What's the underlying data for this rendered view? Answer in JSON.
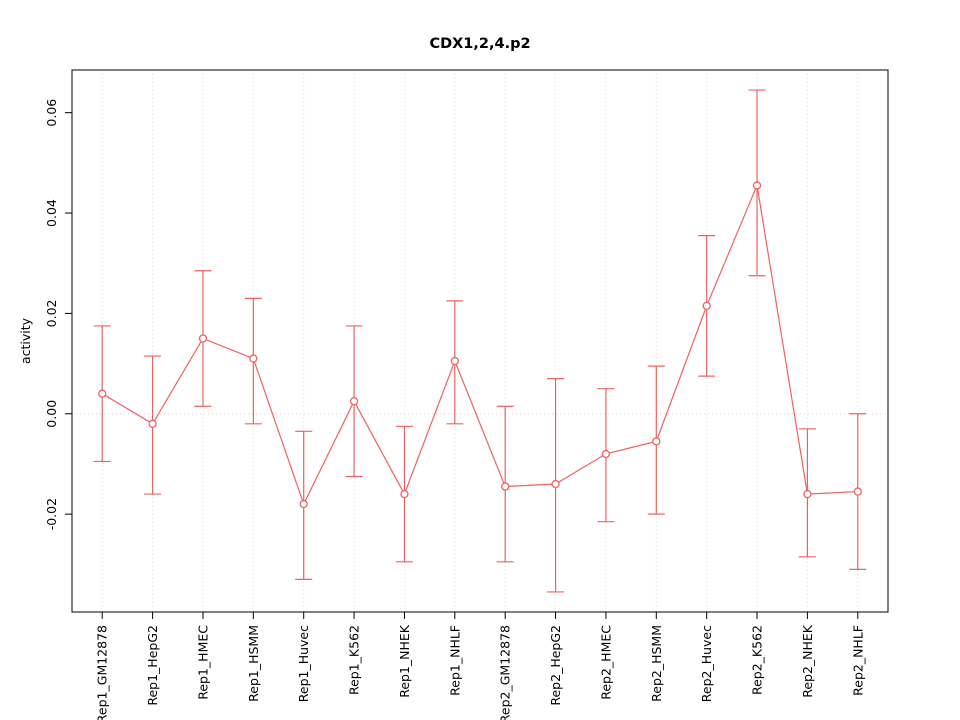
{
  "page": {
    "title": "CDX1,2,4.p2"
  },
  "chart_data": {
    "type": "line",
    "title": "CDX1,2,4.p2",
    "xlabel": "",
    "ylabel": "activity",
    "categories": [
      "Rep1_GM12878",
      "Rep1_HepG2",
      "Rep1_HMEC",
      "Rep1_HSMM",
      "Rep1_Huvec",
      "Rep1_K562",
      "Rep1_NHEK",
      "Rep1_NHLF",
      "Rep2_GM12878",
      "Rep2_HepG2",
      "Rep2_HMEC",
      "Rep2_HSMM",
      "Rep2_Huvec",
      "Rep2_K562",
      "Rep2_NHEK",
      "Rep2_NHLF"
    ],
    "series": [
      {
        "name": "activity",
        "marker": "open-circle",
        "values": [
          0.004,
          -0.002,
          0.015,
          0.011,
          -0.018,
          0.0025,
          -0.016,
          0.0105,
          -0.0145,
          -0.014,
          -0.008,
          -0.0055,
          0.0215,
          0.0455,
          -0.016,
          -0.0155
        ],
        "upper": [
          0.0175,
          0.0115,
          0.0285,
          0.023,
          -0.0035,
          0.0175,
          -0.0025,
          0.0225,
          0.0015,
          0.007,
          0.005,
          0.0095,
          0.0355,
          0.0645,
          -0.003,
          0.0
        ],
        "lower": [
          -0.0095,
          -0.016,
          0.0015,
          -0.002,
          -0.033,
          -0.0125,
          -0.0295,
          -0.002,
          -0.0295,
          -0.0355,
          -0.0215,
          -0.02,
          0.0075,
          0.0275,
          -0.0285,
          -0.031
        ]
      }
    ],
    "ylim": [
      -0.0395,
      0.0685
    ],
    "yticks": [
      -0.02,
      0.0,
      0.02,
      0.04,
      0.06
    ],
    "grid": "vertical-dotted",
    "zero_line": true,
    "legend": "none",
    "colors": {
      "series": "#f26060",
      "grid": "#dcdcdc",
      "zero_line": "#f2cccc",
      "axis": "#000000",
      "background": "#ffffff"
    }
  }
}
